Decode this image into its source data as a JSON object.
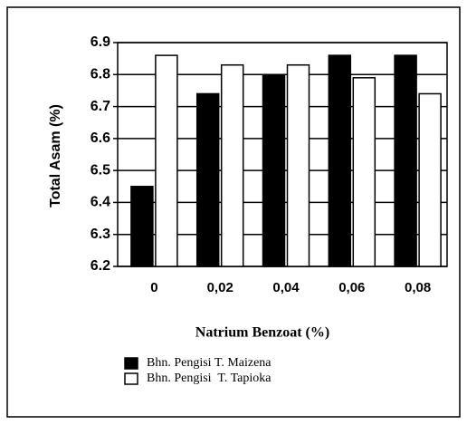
{
  "chart_data": {
    "type": "bar",
    "x_label": "Natrium Benzoat (%)",
    "y_label": "Total Asam (%)",
    "categories": [
      "0",
      "0,02",
      "0,04",
      "0,06",
      "0,08"
    ],
    "series": [
      {
        "name": "Bhn. Pengisi T. Maizena",
        "color": "#000000",
        "values": [
          6.45,
          6.74,
          6.8,
          6.86,
          6.86
        ]
      },
      {
        "name": "Bhn. Pengisi  T. Tapioka",
        "color": "#ffffff",
        "values": [
          6.86,
          6.83,
          6.83,
          6.79,
          6.74
        ]
      }
    ],
    "ylim": [
      6.2,
      6.9
    ],
    "yticks": [
      6.2,
      6.3,
      6.4,
      6.5,
      6.6,
      6.7,
      6.8,
      6.9
    ],
    "grid": true
  }
}
